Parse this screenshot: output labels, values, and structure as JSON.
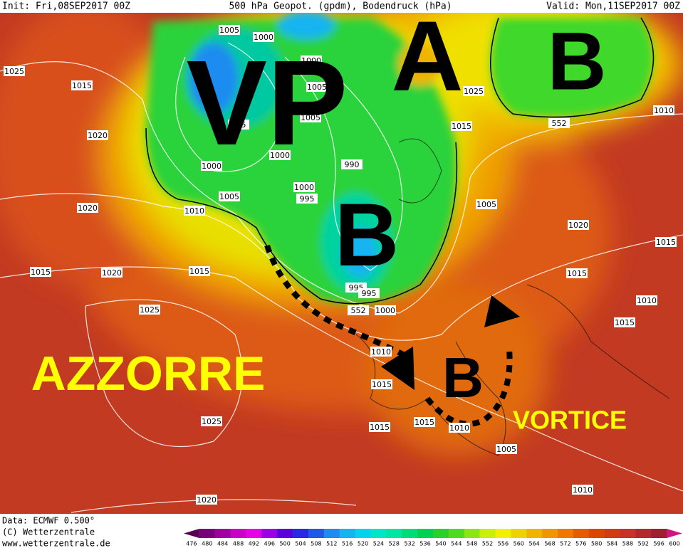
{
  "header": {
    "init": "Init: Fri,08SEP2017 00Z",
    "title": "500 hPa Geopot. (gpdm), Bodendruck (hPa)",
    "valid": "Valid: Mon,11SEP2017 00Z"
  },
  "map_labels": {
    "vp": "VP",
    "a": "A",
    "b_north": "B",
    "b_center": "B",
    "b_south": "B",
    "azzorre": "AZZORRE",
    "vortice": "VORTICE"
  },
  "isobar_labels": [
    1005,
    1000,
    1025,
    1015,
    1000,
    1005,
    1005,
    995,
    1025,
    1010,
    552,
    1015,
    1020,
    1000,
    1000,
    990,
    1000,
    995,
    1005,
    1020,
    1010,
    1005,
    1020,
    1015,
    1015,
    1020,
    1015,
    1015,
    995,
    995,
    552,
    1000,
    1010,
    1015,
    1025,
    1010,
    1015,
    1015,
    1015,
    1010,
    1025,
    1005,
    1010,
    1020
  ],
  "footer": {
    "data": "Data: ECMWF  0.500°",
    "copyright": "(C) Wetterzentrale",
    "url": "www.wetterzentrale.de"
  },
  "colorbar": {
    "levels": [
      476,
      480,
      484,
      488,
      492,
      496,
      500,
      504,
      508,
      512,
      516,
      520,
      524,
      528,
      532,
      536,
      540,
      544,
      548,
      552,
      556,
      560,
      564,
      568,
      572,
      576,
      580,
      584,
      588,
      592,
      596,
      600
    ],
    "colors": [
      "#5a0050",
      "#7a007a",
      "#a000a0",
      "#c800c8",
      "#e600e6",
      "#9b00e6",
      "#5a00dc",
      "#2828e6",
      "#1e5ae6",
      "#1e8cf0",
      "#14b4f0",
      "#00d2f0",
      "#00e6c8",
      "#00e6a0",
      "#00dc78",
      "#00d250",
      "#28d228",
      "#50dc1e",
      "#8ce614",
      "#c8f00a",
      "#f0f000",
      "#f0d200",
      "#f0b400",
      "#f09600",
      "#f07800",
      "#e65a00",
      "#dc4600",
      "#d23c14",
      "#c83228",
      "#b4282d",
      "#a01e32",
      "#d2147d"
    ]
  }
}
